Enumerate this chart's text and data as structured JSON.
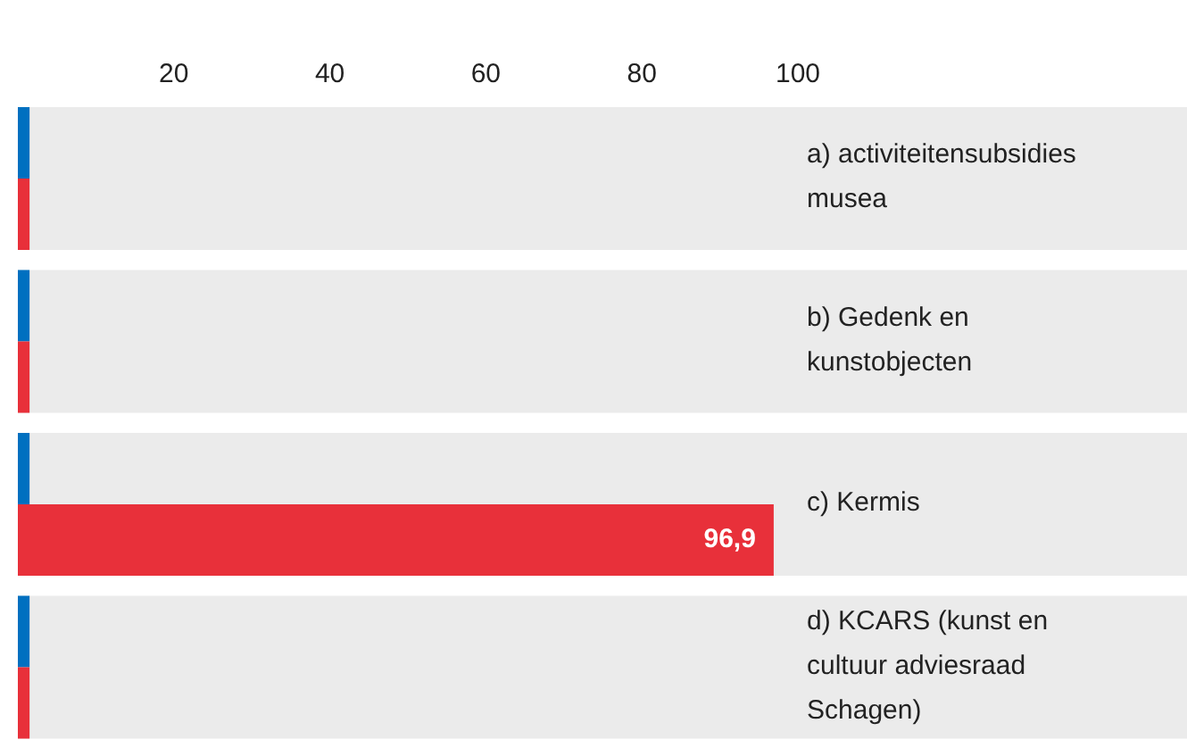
{
  "chart_data": {
    "type": "bar",
    "orientation": "horizontal",
    "categories": [
      "a) activiteitensubsidies musea",
      "b) Gedenk en kunstobjecten",
      "c) Kermis",
      "d) KCARS (kunst en cultuur adviesraad Schagen)"
    ],
    "series": [
      {
        "color": "#0070c0",
        "values": [
          1.5,
          1.5,
          1.5,
          1.5
        ]
      },
      {
        "color": "#e8303a",
        "values": [
          1.5,
          1.5,
          96.9,
          1.5
        ],
        "value_labels": [
          null,
          null,
          "96,9",
          null
        ]
      }
    ],
    "xlim": [
      0,
      100
    ],
    "xticks": [
      20,
      40,
      60,
      80,
      100
    ],
    "bands": [
      {
        "axis": "y",
        "from": "a) activiteitensubsidies musea",
        "to": "a) activiteitensubsidies musea",
        "color": "#ebebeb"
      },
      {
        "axis": "y",
        "from": "b) Gedenk en kunstobjecten",
        "to": "b) Gedenk en kunstobjecten",
        "color": "#ebebeb"
      },
      {
        "axis": "y",
        "from": "c) Kermis",
        "to": "c) Kermis",
        "color": "#ebebeb"
      },
      {
        "axis": "y",
        "from": "d) KCARS (kunst en cultuur adviesraad Schagen)",
        "to": "d) KCARS (kunst en cultuur adviesraad Schagen)",
        "color": "#ebebeb"
      }
    ]
  }
}
